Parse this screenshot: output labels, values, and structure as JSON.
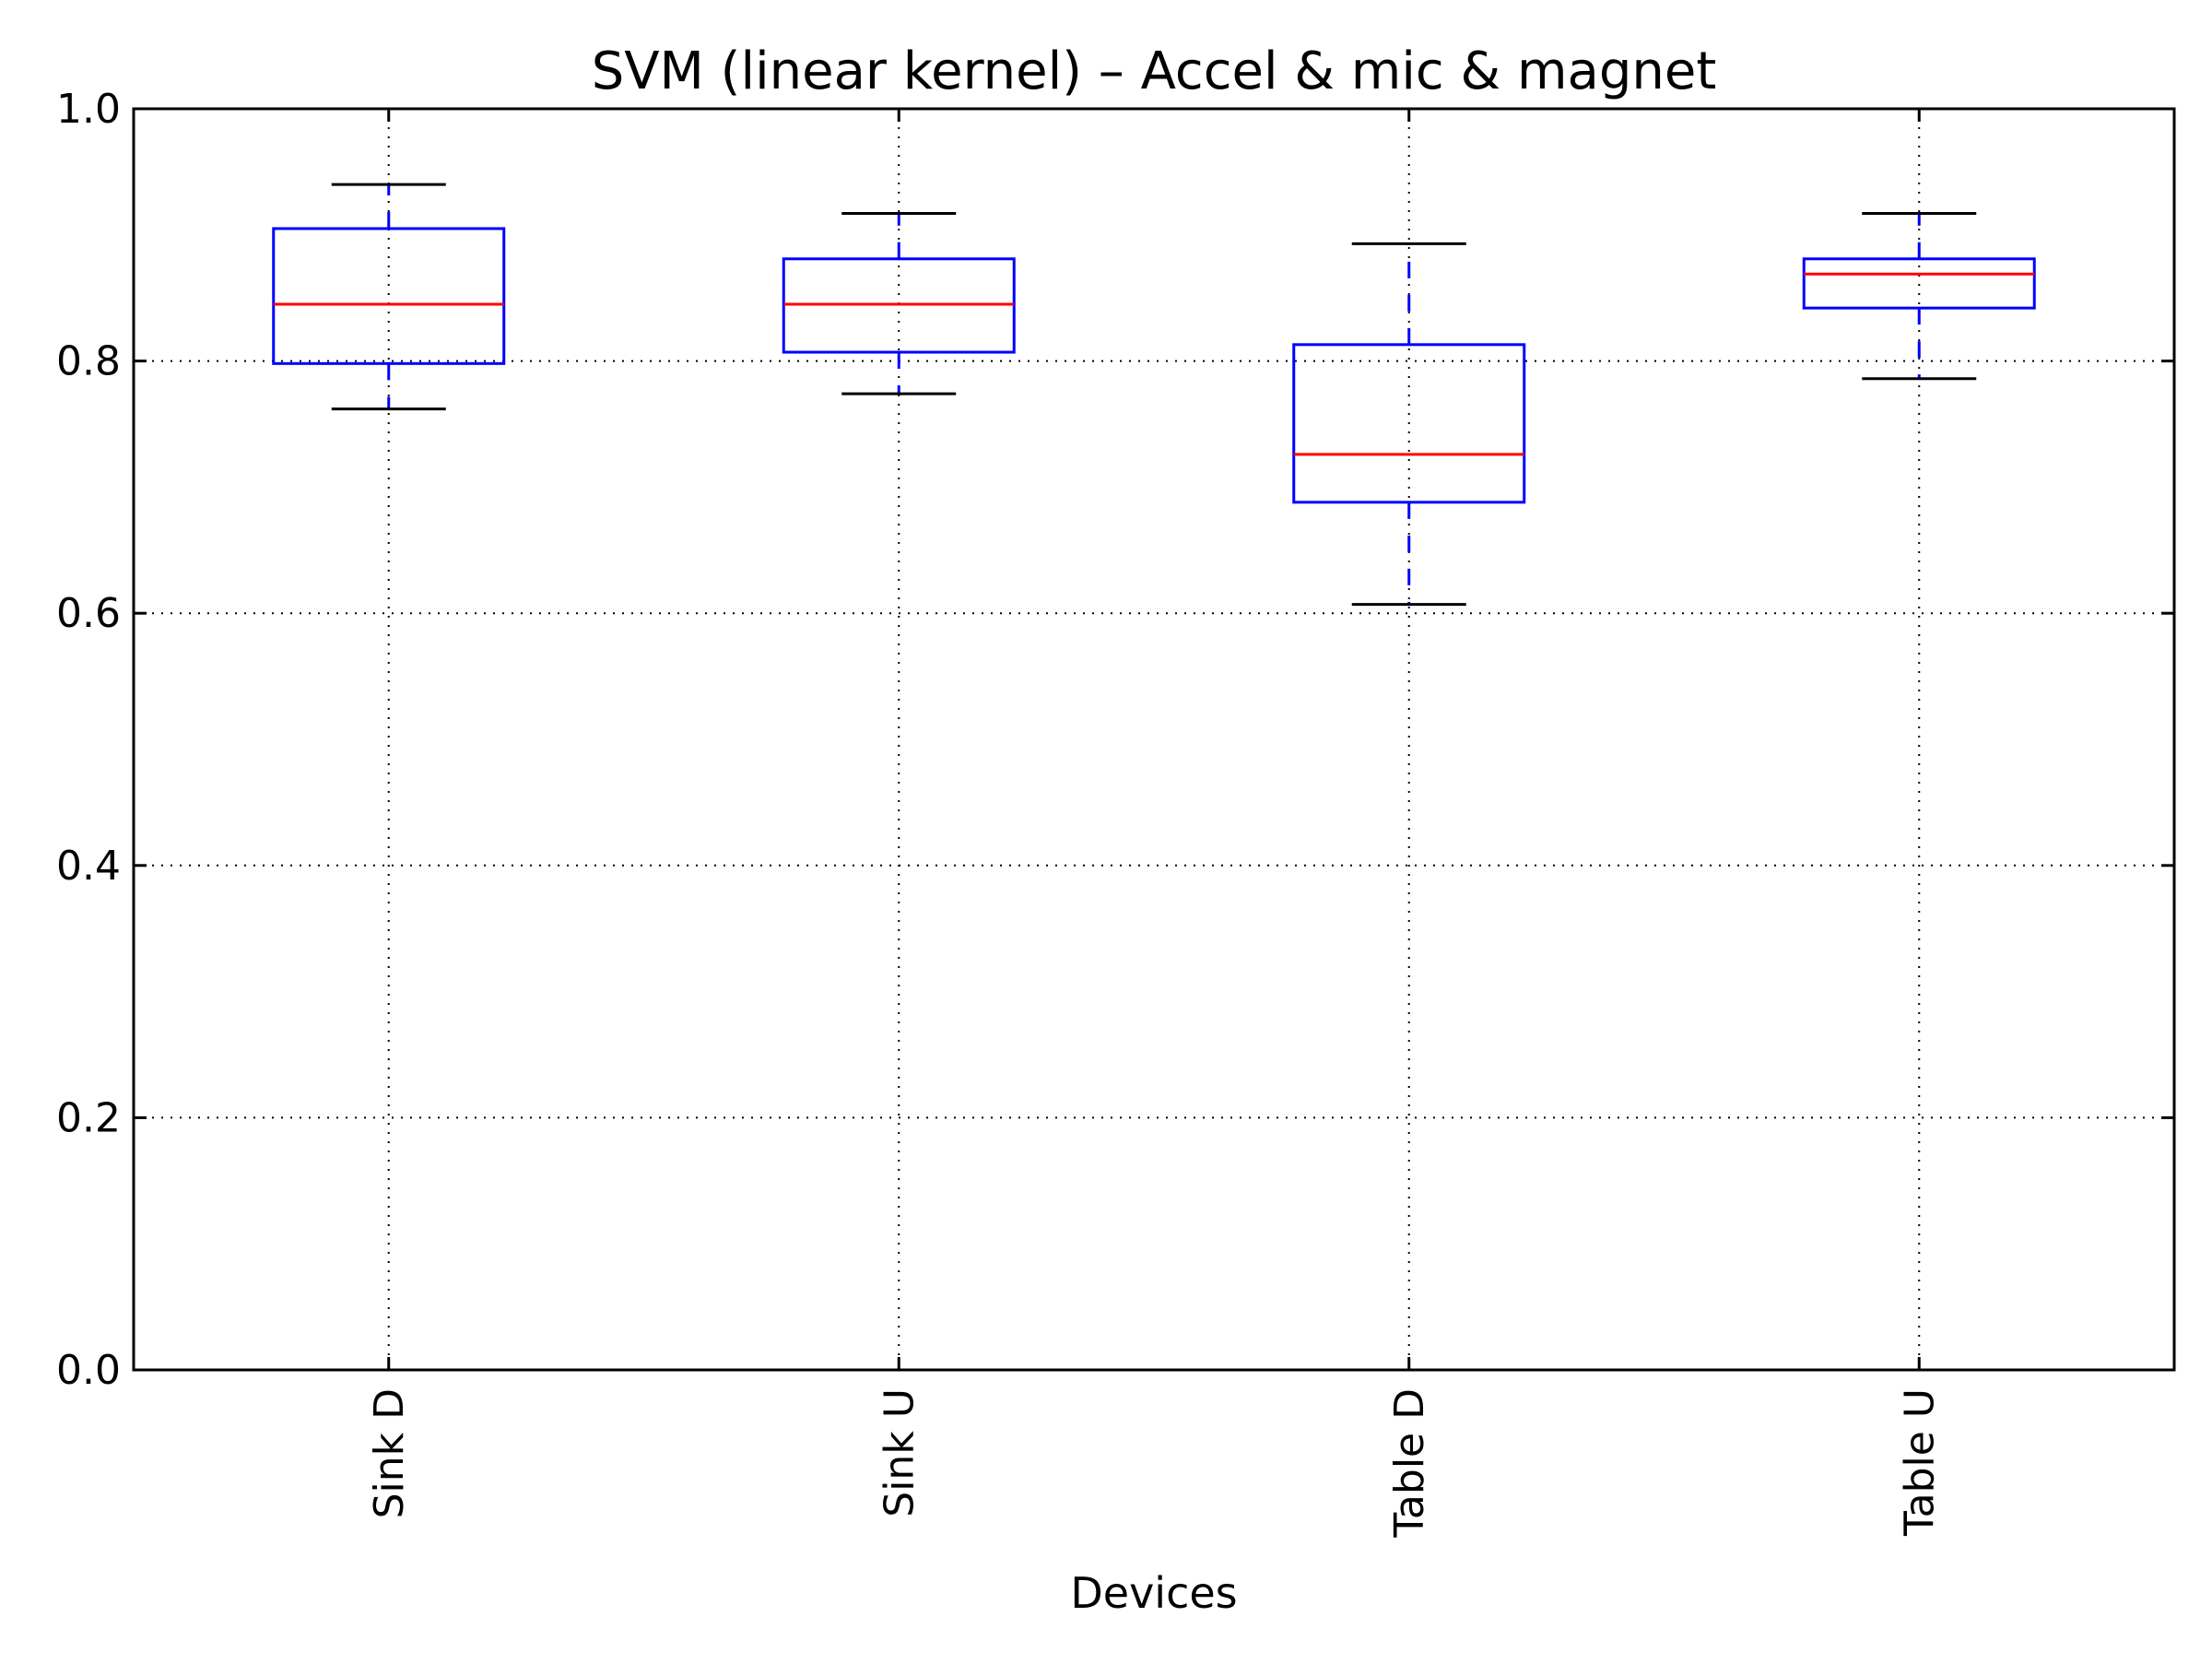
{
  "chart_data": {
    "type": "box",
    "title": "SVM (linear kernel) – Accel & mic & magnet",
    "xlabel": "Devices",
    "ylabel": "",
    "ylim": [
      0.0,
      1.0
    ],
    "yticks": [
      "0.0",
      "0.2",
      "0.4",
      "0.6",
      "0.8",
      "1.0"
    ],
    "grid": true,
    "categories": [
      "Sink D",
      "Sink U",
      "Table D",
      "Table U"
    ],
    "boxes": [
      {
        "category": "Sink D",
        "whisker_low": 0.762,
        "q1": 0.798,
        "median": 0.845,
        "q3": 0.905,
        "whisker_high": 0.94
      },
      {
        "category": "Sink U",
        "whisker_low": 0.774,
        "q1": 0.807,
        "median": 0.845,
        "q3": 0.881,
        "whisker_high": 0.917
      },
      {
        "category": "Table D",
        "whisker_low": 0.607,
        "q1": 0.688,
        "median": 0.726,
        "q3": 0.813,
        "whisker_high": 0.893
      },
      {
        "category": "Table U",
        "whisker_low": 0.786,
        "q1": 0.842,
        "median": 0.869,
        "q3": 0.881,
        "whisker_high": 0.917
      }
    ],
    "colors": {
      "box": "#0000ff",
      "median": "#ff0000",
      "cap": "#000000",
      "grid": "#000000"
    }
  }
}
